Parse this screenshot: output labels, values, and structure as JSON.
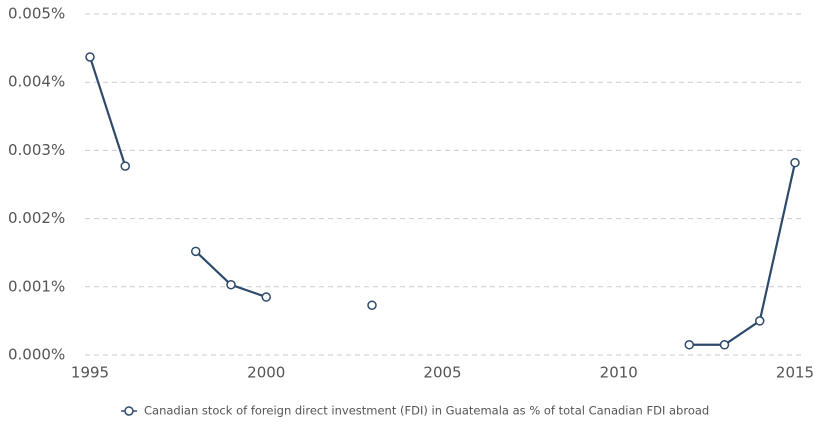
{
  "chart_data": {
    "type": "line",
    "x": [
      1995,
      1996,
      1997,
      1998,
      1999,
      2000,
      2001,
      2002,
      2003,
      2004,
      2005,
      2006,
      2007,
      2008,
      2009,
      2010,
      2011,
      2012,
      2013,
      2014,
      2015
    ],
    "series": [
      {
        "name": "Canadian stock of foreign direct investment (FDI) in Guatemala as % of total Canadian FDI abroad",
        "color": "#2e4a6b",
        "values": [
          0.00437,
          0.00277,
          null,
          0.00152,
          0.00103,
          0.00085,
          null,
          null,
          0.00073,
          null,
          null,
          null,
          null,
          null,
          null,
          null,
          null,
          0.00015,
          0.00015,
          0.0005,
          0.00282
        ]
      }
    ],
    "xlim": [
      1995,
      2015
    ],
    "xticks": [
      1995,
      2000,
      2005,
      2010,
      2015
    ],
    "ylim": [
      0,
      0.005
    ],
    "yticks": [
      {
        "value": 0,
        "label": "0.000%"
      },
      {
        "value": 0.001,
        "label": "0.001%"
      },
      {
        "value": 0.002,
        "label": "0.002%"
      },
      {
        "value": 0.003,
        "label": "0.003%"
      },
      {
        "value": 0.004,
        "label": "0.004%"
      },
      {
        "value": 0.005,
        "label": "0.005%"
      }
    ],
    "grid": true,
    "legend": "bottom"
  }
}
